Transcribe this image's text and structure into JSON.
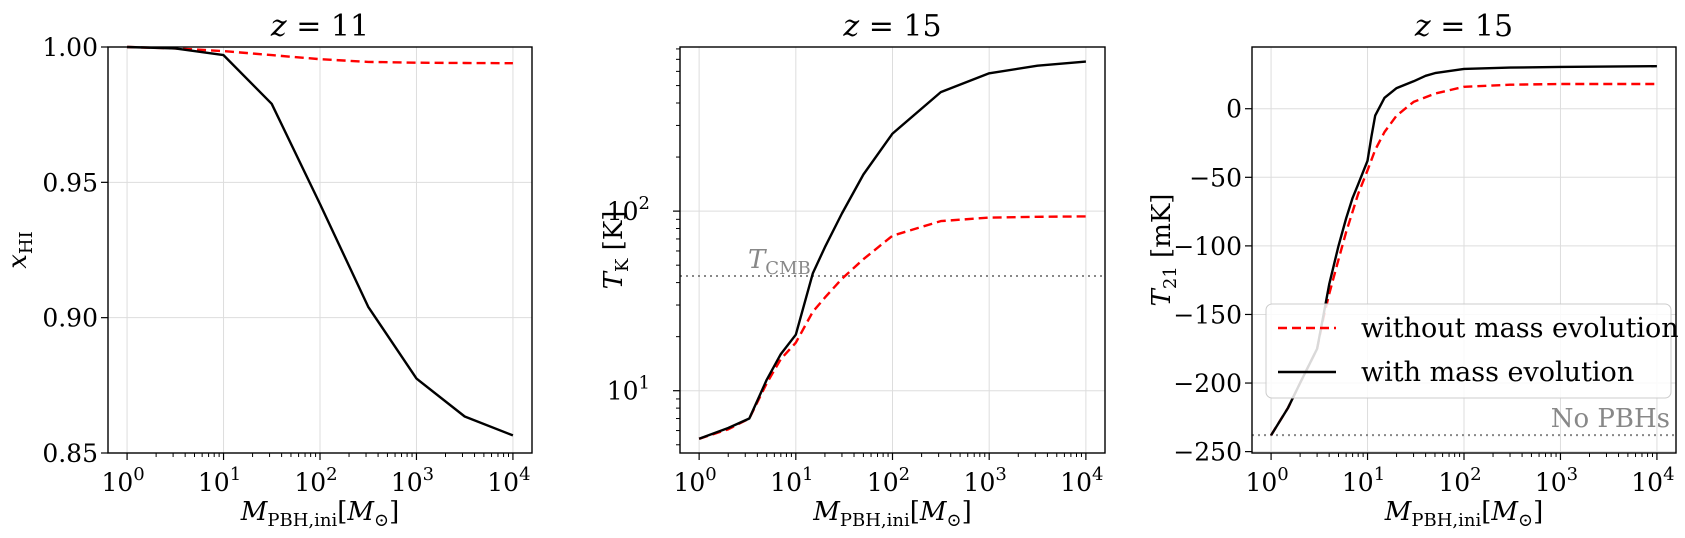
{
  "chart_data": [
    {
      "type": "line",
      "title": "z = 11",
      "xlabel": "M_PBH,ini [M_⊙]",
      "ylabel": "x_HI",
      "xscale": "log",
      "yscale": "linear",
      "xlim": [
        1,
        10000
      ],
      "ylim": [
        0.85,
        1.0
      ],
      "grid": true,
      "xticks": [
        {
          "v": 1,
          "e": "0"
        },
        {
          "v": 10,
          "e": "1"
        },
        {
          "v": 100,
          "e": "2"
        },
        {
          "v": 1000,
          "e": "3"
        },
        {
          "v": 10000,
          "e": "4"
        }
      ],
      "yticks": [
        {
          "v": 0.85,
          "label": "0.85"
        },
        {
          "v": 0.9,
          "label": "0.90"
        },
        {
          "v": 0.95,
          "label": "0.95"
        },
        {
          "v": 1.0,
          "label": "1.00"
        }
      ],
      "series": [
        {
          "name": "without mass evolution",
          "color": "#ff0000",
          "dash": "dashed",
          "x": [
            1,
            3.16,
            10,
            31.6,
            100,
            316,
            1000,
            3160,
            10000
          ],
          "y": [
            1.0,
            0.9995,
            0.9985,
            0.997,
            0.9955,
            0.9945,
            0.9942,
            0.9941,
            0.994
          ]
        },
        {
          "name": "with mass evolution",
          "color": "#000000",
          "dash": "solid",
          "x": [
            1,
            3.16,
            10,
            31.6,
            100,
            316,
            1000,
            3160,
            10000
          ],
          "y": [
            1.0,
            0.9995,
            0.997,
            0.979,
            0.942,
            0.904,
            0.8775,
            0.8635,
            0.8565
          ]
        }
      ]
    },
    {
      "type": "line",
      "title": "z = 15",
      "xlabel": "M_PBH,ini [M_⊙]",
      "ylabel": "T_K [K]",
      "xscale": "log",
      "yscale": "log",
      "xlim": [
        1,
        10000
      ],
      "ylim": [
        4.5,
        820
      ],
      "grid": true,
      "xticks": [
        {
          "v": 1,
          "e": "0"
        },
        {
          "v": 10,
          "e": "1"
        },
        {
          "v": 100,
          "e": "2"
        },
        {
          "v": 1000,
          "e": "3"
        },
        {
          "v": 10000,
          "e": "4"
        }
      ],
      "yticks": [
        {
          "v": 10,
          "e": "1"
        },
        {
          "v": 100,
          "e": "2"
        }
      ],
      "hline": {
        "y": 43.5,
        "label": "T_CMB",
        "color": "#888888"
      },
      "series": [
        {
          "name": "without mass evolution",
          "color": "#ff0000",
          "dash": "dashed",
          "x": [
            1,
            2,
            3.3,
            5,
            7,
            10,
            15,
            20,
            30,
            50,
            100,
            316,
            1000,
            3160,
            10000
          ],
          "y": [
            5.4,
            6.1,
            7.0,
            11.0,
            15.0,
            18.5,
            27.5,
            33.0,
            42.0,
            54.0,
            73.0,
            88.0,
            92.0,
            93.0,
            93.5
          ]
        },
        {
          "name": "with mass evolution",
          "color": "#000000",
          "dash": "solid",
          "x": [
            1,
            2,
            3.3,
            5,
            7,
            10,
            15,
            20,
            30,
            50,
            100,
            316,
            1000,
            3160,
            10000
          ],
          "y": [
            5.4,
            6.2,
            7.0,
            11.5,
            16.0,
            20.5,
            45.0,
            63.0,
            97.0,
            160.0,
            270.0,
            460.0,
            585.0,
            645.0,
            680.0
          ]
        }
      ]
    },
    {
      "type": "line",
      "title": "z = 15",
      "xlabel": "M_PBH,ini [M_⊙]",
      "ylabel": "T_21 [mK]",
      "xscale": "log",
      "yscale": "linear",
      "xlim": [
        1,
        10000
      ],
      "ylim": [
        -251,
        45
      ],
      "grid": true,
      "xticks": [
        {
          "v": 1,
          "e": "0"
        },
        {
          "v": 10,
          "e": "1"
        },
        {
          "v": 100,
          "e": "2"
        },
        {
          "v": 1000,
          "e": "3"
        },
        {
          "v": 10000,
          "e": "4"
        }
      ],
      "yticks": [
        {
          "v": -250,
          "label": "−250"
        },
        {
          "v": -200,
          "label": "−200"
        },
        {
          "v": -150,
          "label": "−150"
        },
        {
          "v": -100,
          "label": "−100"
        },
        {
          "v": -50,
          "label": "−50"
        },
        {
          "v": 0,
          "label": "0"
        }
      ],
      "hline": {
        "y": -238,
        "label": "No PBHs",
        "color": "#888888"
      },
      "legend": {
        "placement": "center-right",
        "entries": [
          "without mass evolution",
          "with mass evolution"
        ]
      },
      "series": [
        {
          "name": "without mass evolution",
          "color": "#ff0000",
          "dash": "dashed",
          "x": [
            1,
            1.5,
            2,
            3,
            3.5,
            4,
            5,
            6,
            7,
            8,
            10,
            12,
            15,
            20,
            30,
            50,
            100,
            300,
            1000,
            10000
          ],
          "y": [
            -238,
            -218,
            -200,
            -175,
            -152,
            -135,
            -110,
            -90,
            -75,
            -62,
            -45,
            -30,
            -17,
            -5,
            5,
            11,
            16,
            17.5,
            18,
            18
          ]
        },
        {
          "name": "with mass evolution",
          "color": "#000000",
          "dash": "solid",
          "x": [
            1,
            1.5,
            2,
            3,
            3.5,
            4,
            5,
            6,
            7,
            8,
            10,
            11,
            12,
            15,
            20,
            30,
            40,
            50,
            100,
            300,
            1000,
            10000
          ],
          "y": [
            -238,
            -218,
            -200,
            -175,
            -150,
            -128,
            -100,
            -80,
            -65,
            -55,
            -38,
            -20,
            -5,
            8,
            15,
            20,
            24,
            26,
            29,
            30,
            30.5,
            31
          ]
        }
      ]
    }
  ]
}
